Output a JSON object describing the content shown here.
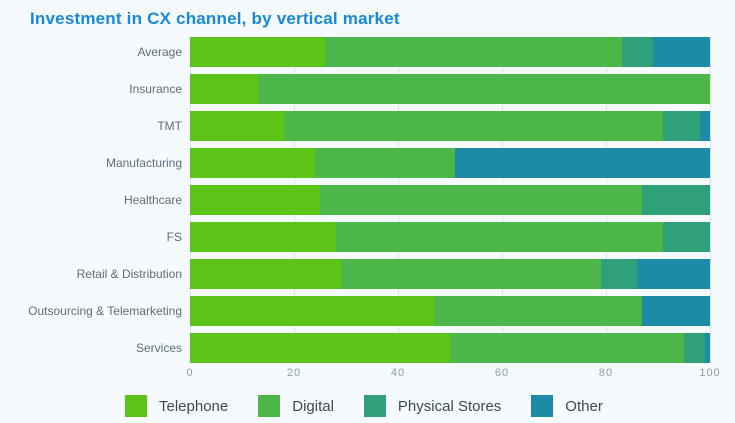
{
  "title": "Investment in CX channel, by vertical market",
  "colors": {
    "title": "#1789d8",
    "background": "#f4fafd",
    "gridline": "#d9e5eb",
    "category_text": "#626d76",
    "tick_text": "#8fa0aa",
    "legend_text": "#3e4a53"
  },
  "chart_data": {
    "type": "bar",
    "orientation": "horizontal",
    "stacked": true,
    "title": "Investment in CX channel, by vertical market",
    "categories": [
      "Average",
      "Insurance",
      "TMT",
      "Manufacturing",
      "Healthcare",
      "FS",
      "Retail & Distribution",
      "Outsourcing & Telemarketing",
      "Services"
    ],
    "series": [
      {
        "name": "Telephone",
        "color": "#5cc417",
        "values": [
          26,
          13,
          18,
          24,
          25,
          28,
          29,
          47,
          50
        ]
      },
      {
        "name": "Digital",
        "color": "#4cb648",
        "values": [
          57,
          87,
          73,
          27,
          62,
          63,
          50,
          40,
          45
        ]
      },
      {
        "name": "Physical Stores",
        "color": "#2fa077",
        "values": [
          6,
          0,
          7,
          0,
          13,
          9,
          7,
          0,
          4
        ]
      },
      {
        "name": "Other",
        "color": "#1e8ba6",
        "values": [
          11,
          0,
          2,
          49,
          0,
          0,
          14,
          13,
          1
        ]
      }
    ],
    "xlim": [
      0,
      100
    ],
    "xticks": [
      0,
      20,
      40,
      60,
      80,
      100
    ],
    "grid": "vertical",
    "legend_position": "bottom"
  }
}
